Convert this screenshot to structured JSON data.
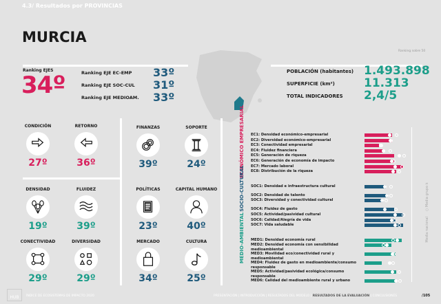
{
  "header": {
    "section": "4.3/ Resultados por PROVINCIAS",
    "title": "MURCIA",
    "ranking_note": "Ranking sobre 50"
  },
  "rankings": {
    "ejes_label": "Ranking EJES",
    "ejes_value": "34º",
    "items": [
      {
        "label": "Ranking EJE EC-EMP",
        "value": "33º"
      },
      {
        "label": "Ranking EJE SOC-CUL",
        "value": "31º"
      },
      {
        "label": "Ranking EJE MEDIOAM.",
        "value": "33º"
      }
    ]
  },
  "stats": [
    {
      "label": "POBLACIÓN (habitantes)",
      "value": "1.493.898"
    },
    {
      "label": "SUPERFICIE (km²)",
      "value": "11.313"
    },
    {
      "label": "TOTAL INDICADORES",
      "value": "2,4/5"
    }
  ],
  "colors": {
    "pink": "#d81f5c",
    "blue": "#1f5a7c",
    "teal": "#1c9e8a",
    "bg": "#e3e3e3"
  },
  "indicators": [
    {
      "label": "CONDICIÓN",
      "value": "27º",
      "icon": "arrow-right-icon",
      "color": "pink"
    },
    {
      "label": "RETORNO",
      "value": "36º",
      "icon": "arrow-left-icon",
      "color": "pink"
    },
    {
      "label": "DENSIDAD",
      "value": "19º",
      "icon": "balloons-icon",
      "color": "teal"
    },
    {
      "label": "FLUIDEZ",
      "value": "39º",
      "icon": "waves-icon",
      "color": "teal"
    },
    {
      "label": "CONECTIVIDAD",
      "value": "29º",
      "icon": "network-icon",
      "color": "teal"
    },
    {
      "label": "DIVERSIDAD",
      "value": "29º",
      "icon": "shapes-icon",
      "color": "teal"
    },
    {
      "label": "FINANZAS",
      "value": "39º",
      "icon": "coins-icon",
      "color": "blue"
    },
    {
      "label": "SOPORTE",
      "value": "24º",
      "icon": "column-icon",
      "color": "blue"
    },
    {
      "label": "POLÍTICAS",
      "value": "23º",
      "icon": "document-icon",
      "color": "blue"
    },
    {
      "label": "CAPITAL HUMANO",
      "value": "40º",
      "icon": "person-icon",
      "color": "blue"
    },
    {
      "label": "MERCADO",
      "value": "34º",
      "icon": "bag-icon",
      "color": "blue"
    },
    {
      "label": "CULTURA",
      "value": "25º",
      "icon": "music-note-icon",
      "color": "blue"
    }
  ],
  "chart_data": {
    "type": "bar",
    "orientation": "horizontal",
    "xlim": [
      0,
      100
    ],
    "legend": [
      "Media nacional",
      "Media grupo k"
    ],
    "legend_placement": "right",
    "groups": [
      {
        "name": "ECONÓMICO EMPRESARIAL",
        "color": "#d81f5c",
        "items": [
          {
            "label": "EC1: Densidad económico-empresarial",
            "value": 60,
            "national": 53,
            "group": 69
          },
          {
            "label": "EC2: Diversidad económico-empresarial",
            "value": 59,
            "national": 55,
            "group": 56
          },
          {
            "label": "EC3: Conectividad empresarial",
            "value": 32,
            "national": 35,
            "group": 36
          },
          {
            "label": "EC4: Fluidez financiera",
            "value": 42,
            "national": 40,
            "group": 55
          },
          {
            "label": "EC5: Generación de riqueza",
            "value": 64,
            "national": 75,
            "group": 85
          },
          {
            "label": "EC6: Generación de economía de impacto",
            "value": 64,
            "national": 58,
            "group": 63
          },
          {
            "label": "EC7: Mercado laboral",
            "value": 84,
            "national": 66,
            "group": 81
          },
          {
            "label": "EC8: Distribución de la riqueza",
            "value": 69,
            "national": 61,
            "group": 75
          }
        ]
      },
      {
        "name": "SOCIO-CULTURAL",
        "color": "#1f5a7c",
        "items": [
          {
            "label": "SOC1: Densidad e infraestructura cultural",
            "value": 46,
            "national": 43,
            "group": 57
          },
          {
            "label": "SOC2: Densidad de talento",
            "value": 50,
            "national": 48,
            "group": 57
          },
          {
            "label": "SOC3: Diversidad  y conectividad cultural",
            "value": 41,
            "national": 38,
            "group": 46
          },
          {
            "label": "SOC4: Fluidez de gasto",
            "value": 64,
            "national": 43,
            "group": 67
          },
          {
            "label": "SOC5: Actividad/pasividad cultural",
            "value": 83,
            "national": 65,
            "group": 83
          },
          {
            "label": "SOC6: Calidad/Alegría de vida",
            "value": 67,
            "national": 58,
            "group": 64
          },
          {
            "label": "SOC7: Vida saludable",
            "value": 83,
            "national": 65,
            "group": 74
          }
        ]
      },
      {
        "name": "MEDIO-AMBIENTAL",
        "color": "#1c9e8a",
        "items": [
          {
            "label": "MED1: Densidad economía rural",
            "value": 80,
            "national": 70,
            "group": 61
          },
          {
            "label": "MED2: Densidad economía con sensibilidad medioambiental",
            "value": 58,
            "national": 48,
            "group": 40
          },
          {
            "label": "MED3: Movilidad eco/conectividad rural y medioambiental",
            "value": 67,
            "national": 59,
            "group": 63
          },
          {
            "label": "MED4: Fluidez de gasto en medioambiente/consumo responsable",
            "value": 38,
            "national": 54,
            "group": 61
          },
          {
            "label": "MED5: Actividad/pasividad ecológica/consumo responsable",
            "value": 69,
            "national": 60,
            "group": 75
          },
          {
            "label": "MED6: Calidad del medioambiente rural y urbano",
            "value": 68,
            "national": 67,
            "group": 76
          }
        ]
      }
    ]
  },
  "footer": {
    "logo": "HUB",
    "report": "ÍNDICE DE ECOSISTEMAS DE IMPACTO 2020",
    "nav": [
      "PRESENTACIÓN",
      "INTRODUCCIÓN",
      "RESULTADOS DEL MODELO",
      "RESULTADOS DE LA EVALUACIÓN",
      "CONCLUSIONES"
    ],
    "page": "/105"
  }
}
